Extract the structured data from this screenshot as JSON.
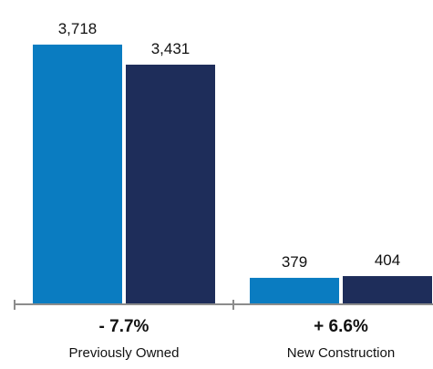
{
  "chart_data": {
    "type": "bar",
    "categories": [
      "Previously Owned",
      "New Construction"
    ],
    "series": [
      {
        "values": [
          3718,
          379
        ]
      },
      {
        "values": [
          3431,
          404
        ]
      }
    ],
    "value_labels": [
      [
        "3,718",
        "379"
      ],
      [
        "3,431",
        "404"
      ]
    ],
    "change_labels": [
      "- 7.7%",
      "+ 6.6%"
    ],
    "title": "",
    "xlabel": "",
    "ylabel": "",
    "ylim": [
      0,
      3900
    ],
    "grid": false,
    "legend": "none",
    "colors": [
      "#0a7cc1",
      "#1e2d5a"
    ],
    "axis_color": "#8c8c8c"
  }
}
